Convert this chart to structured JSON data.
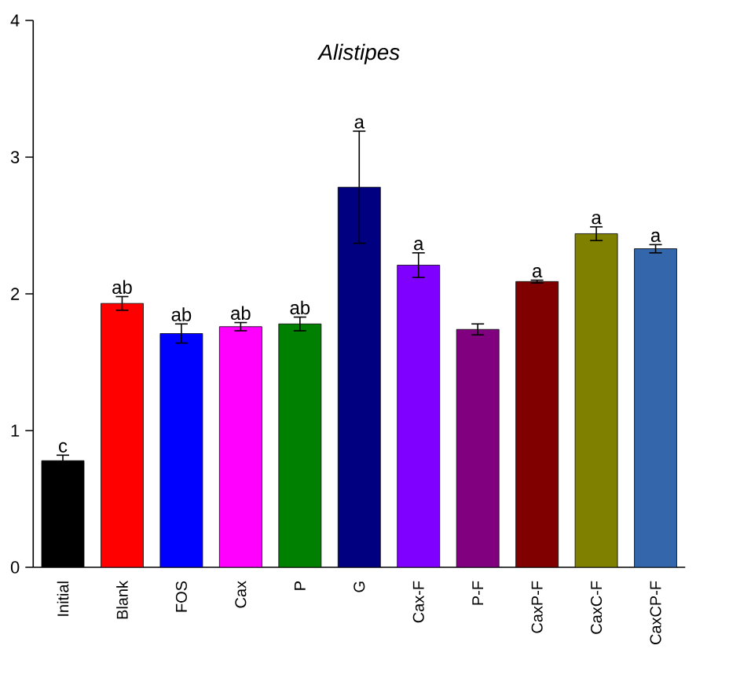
{
  "chart_data": {
    "type": "bar",
    "title": "Alistipes",
    "categories": [
      "Initial",
      "Blank",
      "FOS",
      "Cax",
      "P",
      "G",
      "Cax-F",
      "P-F",
      "CaxP-F",
      "CaxC-F",
      "CaxCP-F"
    ],
    "values": [
      0.78,
      1.93,
      1.71,
      1.76,
      1.78,
      2.78,
      2.21,
      1.74,
      2.09,
      2.44,
      2.33
    ],
    "errors": [
      0.04,
      0.05,
      0.07,
      0.03,
      0.05,
      0.41,
      0.09,
      0.04,
      0.01,
      0.05,
      0.03
    ],
    "value_labels": [
      "c",
      "ab",
      "ab",
      "ab",
      "ab",
      "a",
      "a",
      null,
      "a",
      "a",
      "a"
    ],
    "colors": [
      "#000000",
      "#ff0000",
      "#0000ff",
      "#ff00ff",
      "#008000",
      "#000080",
      "#8000ff",
      "#800080",
      "#800000",
      "#808000",
      "#3366aa"
    ],
    "ylim": [
      0,
      4
    ],
    "yticks": [
      0,
      1,
      2,
      3,
      4
    ],
    "grid": false
  }
}
